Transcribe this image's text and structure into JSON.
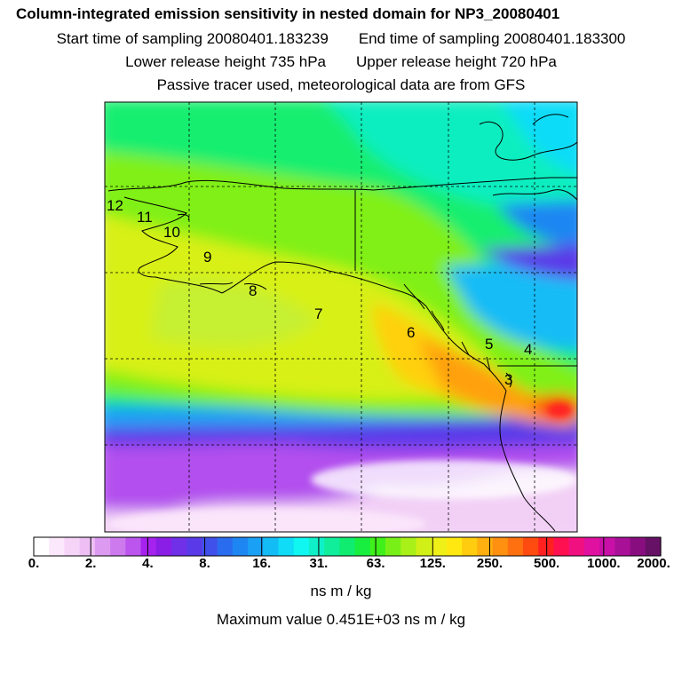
{
  "header": {
    "title": "Column-integrated emission sensitivity in nested domain for NP3_20080401",
    "start_label": "Start time of sampling 20080401.183239",
    "end_label": "End time of sampling 20080401.183300",
    "lower_label": "Lower release height  735 hPa",
    "upper_label": "Upper release height  720 hPa",
    "tracer_note": "Passive tracer used, meteorological data are from GFS"
  },
  "map": {
    "point_labels": [
      "12",
      "11",
      "10",
      "9",
      "8",
      "7",
      "6",
      "5",
      "4",
      "3"
    ]
  },
  "colorbar": {
    "tick_labels": [
      "0.",
      "2.",
      "4.",
      "8.",
      "16.",
      "31.",
      "63.",
      "125.",
      "250.",
      "500.",
      "1000.",
      "2000."
    ],
    "colors": [
      "#ffffff",
      "#fce8fc",
      "#f6d4f8",
      "#eebff5",
      "#dc9af0",
      "#cc7aee",
      "#bb55ee",
      "#a622ee",
      "#8a1ee6",
      "#7030e8",
      "#5a3ae8",
      "#4050ea",
      "#2a6cf0",
      "#1e86f2",
      "#1aa0f4",
      "#14bcf6",
      "#10dcf8",
      "#10f6f0",
      "#10f0c8",
      "#10ee9c",
      "#10ec70",
      "#18ee40",
      "#40f01a",
      "#78f018",
      "#a8f018",
      "#d0f018",
      "#eef018",
      "#ffe810",
      "#ffcc10",
      "#ffb010",
      "#ff9010",
      "#ff7010",
      "#ff4a10",
      "#ff2020",
      "#ff1050",
      "#f01080",
      "#e010a0",
      "#c810a8",
      "#a81098",
      "#880e80",
      "#661066"
    ],
    "unit_label": "ns m / kg",
    "max_label": "Maximum value  0.451E+03 ns m / kg"
  }
}
